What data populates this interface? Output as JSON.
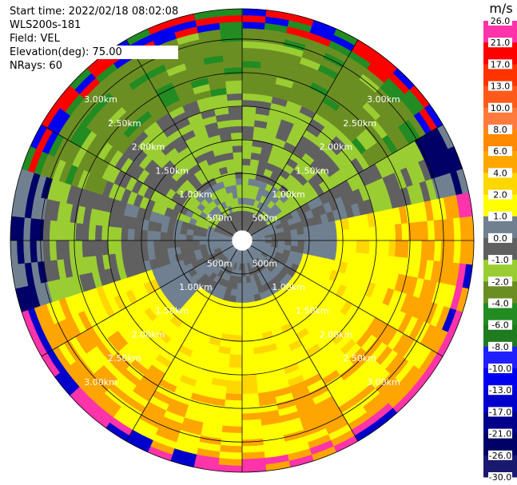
{
  "chart_data": {
    "type": "heatmap",
    "title_lines": {
      "start_time": "Start time: 2022/02/18 08:02:08",
      "site": "WLS200s-181",
      "field": "Field: VEL",
      "elevation": "Elevation(deg): 75.00",
      "nrays": "NRays: 60"
    },
    "projection": "polar PPI",
    "nrays": 60,
    "range_rings_labels": [
      "500m",
      "1.00km",
      "1.50km",
      "2.00km",
      "2.50km",
      "3.00km"
    ],
    "range_rings_km": [
      0.5,
      1.0,
      1.5,
      2.0,
      2.5,
      3.0
    ],
    "max_range_km": 3.45,
    "spoke_angles_deg": [
      0,
      30,
      60,
      90,
      120,
      150,
      180,
      210,
      240,
      270,
      300,
      330
    ],
    "colorbar": {
      "unit": "m/s",
      "labels": [
        "26.0",
        "21.0",
        "17.0",
        "13.0",
        "10.0",
        "8.0",
        "6.0",
        "4.0",
        "2.0",
        "1.0",
        "0.0",
        "-1.0",
        "-2.0",
        "-4.0",
        "-6.0",
        "-8.0",
        "-10.0",
        "-13.0",
        "-17.0",
        "-21.0",
        "-26.0",
        "-30.0"
      ],
      "colors_top_to_bottom": [
        "#ff33aa",
        "#ff0000",
        "#ff3300",
        "#ff5a1a",
        "#ff7a3d",
        "#ff8a00",
        "#ffa500",
        "#ffd700",
        "#ffff00",
        "#708090",
        "#606060",
        "#9acd32",
        "#6b8e23",
        "#228b22",
        "#1e7b1e",
        "#2020ff",
        "#0000ee",
        "#0000cc",
        "#00008b",
        "#000066",
        "#191970"
      ]
    },
    "velocity_classes": {
      "pos_high": "#ffa500",
      "pos_mid": "#ffff00",
      "pos_low": "#ffd700",
      "zero": "#606060",
      "zero_light": "#708090",
      "neg_low": "#9acd32",
      "neg_mid": "#6b8e23",
      "neg_high": "#228b22"
    }
  }
}
